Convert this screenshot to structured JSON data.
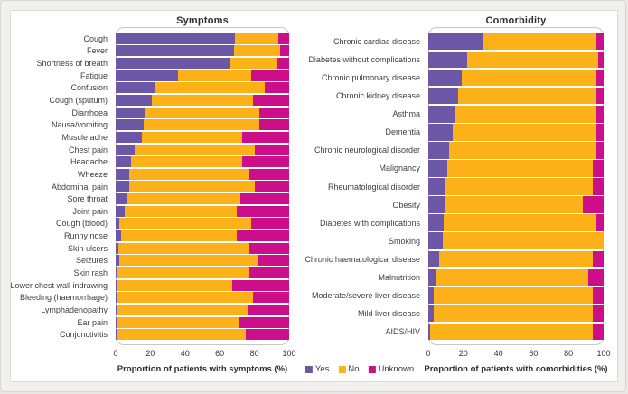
{
  "legend": {
    "items": [
      {
        "label": "Yes",
        "color": "#6b57a5"
      },
      {
        "label": "No",
        "color": "#fbb117"
      },
      {
        "label": "Unknown",
        "color": "#cc0e8b"
      }
    ],
    "colors": {
      "Yes": "#6b57a5",
      "No": "#fbb117",
      "Unknown": "#cc0e8b"
    }
  },
  "chart_data": [
    {
      "type": "bar",
      "orientation": "horizontal",
      "stacked": true,
      "title": "Symptoms",
      "xlabel": "Proportion of patients with symptoms (%)",
      "xlim": [
        0,
        100
      ],
      "ticks": [
        0,
        20,
        40,
        60,
        80,
        100
      ],
      "grid": false,
      "legend_position": "bottom-center",
      "categories": [
        "Cough",
        "Fever",
        "Shortness of breath",
        "Fatigue",
        "Confusion",
        "Cough (sputum)",
        "Diarrhoea",
        "Nausa/vomiting",
        "Muscle ache",
        "Chest pain",
        "Headache",
        "Wheeze",
        "Abdominal pain",
        "Sore throat",
        "Joint pain",
        "Cough (blood)",
        "Runny nose",
        "Skin ulcers",
        "Seizures",
        "Skin rash",
        "Lower chest wall indrawing",
        "Bleeding (haemorrhage)",
        "Lymphadenopathy",
        "Ear pain",
        "Conjunctivitis"
      ],
      "series": [
        {
          "name": "Yes",
          "values": [
            69,
            68,
            66,
            36,
            23,
            21,
            17,
            16,
            15,
            11,
            9,
            8,
            8,
            7,
            5,
            2,
            3,
            1.5,
            2,
            1,
            1,
            1,
            1,
            1,
            1
          ]
        },
        {
          "name": "No",
          "values": [
            25,
            27,
            27,
            42,
            63,
            58,
            66,
            67,
            58,
            69,
            64,
            69,
            72,
            65,
            65,
            76,
            67,
            75.5,
            80,
            76,
            66,
            78,
            75,
            70,
            74
          ]
        },
        {
          "name": "Unknown",
          "values": [
            6,
            5,
            7,
            22,
            14,
            21,
            17,
            17,
            27,
            20,
            27,
            23,
            20,
            28,
            30,
            22,
            30,
            23,
            18,
            23,
            33,
            21,
            24,
            29,
            25
          ]
        }
      ]
    },
    {
      "type": "bar",
      "orientation": "horizontal",
      "stacked": true,
      "title": "Comorbidity",
      "xlabel": "Proportion of patients with comorbidities (%)",
      "xlim": [
        0,
        100
      ],
      "ticks": [
        0,
        20,
        40,
        60,
        80,
        100
      ],
      "grid": false,
      "legend_position": "bottom-center",
      "categories": [
        "Chronic cardiac disease",
        "Diabetes without complications",
        "Chronic pulmonary disease",
        "Chronic kidney disease",
        "Asthma",
        "Dementia",
        "Chronic neurological disorder",
        "Malignancy",
        "Rheumatological disorder",
        "Obesity",
        "Diabetes with complications",
        "Smoking",
        "Chronic haematological disease",
        "Malnutrition",
        "Moderate/severe liver disease",
        "Mild liver disease",
        "AIDS/HIV"
      ],
      "series": [
        {
          "name": "Yes",
          "values": [
            31,
            22,
            19,
            17,
            15,
            14,
            12,
            11,
            10,
            10,
            9,
            8,
            6,
            4,
            3,
            3,
            1
          ]
        },
        {
          "name": "No",
          "values": [
            65,
            75,
            77,
            79,
            81,
            82,
            84,
            83,
            84,
            78,
            87,
            92,
            88,
            87,
            91,
            91,
            93
          ]
        },
        {
          "name": "Unknown",
          "values": [
            4,
            3,
            4,
            4,
            4,
            4,
            4,
            6,
            6,
            12,
            4,
            0,
            6,
            9,
            6,
            6,
            6
          ]
        }
      ]
    }
  ]
}
